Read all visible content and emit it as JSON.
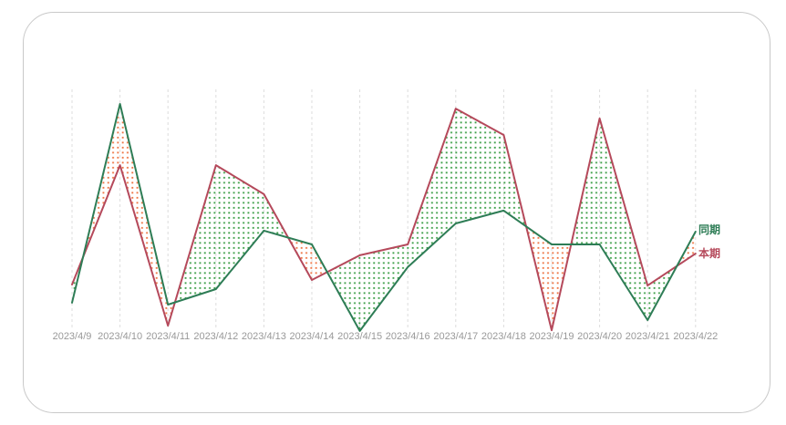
{
  "card": {
    "background": "#ffffff",
    "border_color": "#c9c9c9"
  },
  "chart_data": {
    "type": "line",
    "title": "",
    "xlabel": "",
    "ylabel": "",
    "ylim": [
      0,
      100
    ],
    "grid": {
      "vertical_dashed": true,
      "color": "#dddddd"
    },
    "axis_label_color": "#999999",
    "legend_position": "right-of-line-ends",
    "fill_style": "dotted area between the two series, dot color taken from the lower series",
    "categories": [
      "2023/4/9",
      "2023/4/10",
      "2023/4/11",
      "2023/4/12",
      "2023/4/13",
      "2023/4/14",
      "2023/4/15",
      "2023/4/16",
      "2023/4/17",
      "2023/4/18",
      "2023/4/19",
      "2023/4/20",
      "2023/4/21",
      "2023/4/22"
    ],
    "series": [
      {
        "name": "同期",
        "line_color": "#2e7d56",
        "dot_fill_color": "#3fa04a",
        "values": [
          12.5,
          94.7,
          11.7,
          18.1,
          42.3,
          36.6,
          0.8,
          27.2,
          45.3,
          50.6,
          36.6,
          36.6,
          5.3,
          41.9
        ]
      },
      {
        "name": "本期",
        "line_color": "#b5495b",
        "dot_fill_color": "#ee7747",
        "values": [
          20.0,
          69.4,
          3.0,
          69.4,
          57.4,
          21.9,
          32.1,
          36.6,
          92.8,
          81.9,
          1.1,
          88.7,
          19.6,
          32.8
        ]
      }
    ]
  }
}
